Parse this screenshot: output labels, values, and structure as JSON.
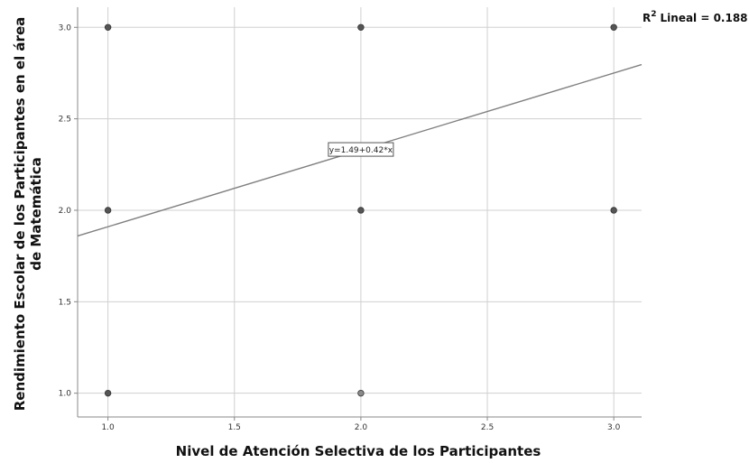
{
  "chart_data": {
    "type": "scatter",
    "title": "",
    "xlabel": "Nivel de Atención Selectiva de los Participantes",
    "ylabel_lines": [
      "Rendimiento Escolar de los Participantes en el área",
      "de Matemática"
    ],
    "xlim": [
      0.88,
      3.11
    ],
    "ylim": [
      0.87,
      3.11
    ],
    "xticks": [
      "1.0",
      "1.5",
      "2.0",
      "2.5",
      "3.0"
    ],
    "yticks": [
      "1.0",
      "1.5",
      "2.0",
      "2.5",
      "3.0"
    ],
    "grid": true,
    "points": [
      {
        "x": 1.0,
        "y": 3.0,
        "tone": "dark"
      },
      {
        "x": 1.0,
        "y": 2.0,
        "tone": "dark"
      },
      {
        "x": 1.0,
        "y": 1.0,
        "tone": "dark"
      },
      {
        "x": 2.0,
        "y": 3.0,
        "tone": "dark"
      },
      {
        "x": 2.0,
        "y": 2.0,
        "tone": "dark"
      },
      {
        "x": 2.0,
        "y": 1.0,
        "tone": "light"
      },
      {
        "x": 3.0,
        "y": 3.0,
        "tone": "dark"
      },
      {
        "x": 3.0,
        "y": 2.0,
        "tone": "dark"
      }
    ],
    "fit_line": {
      "intercept": 1.49,
      "slope": 0.42,
      "equation_label": "y=1.49+0.42*x",
      "label_at_x": 2.0
    },
    "r2_prefix": "R",
    "r2_superscript": "2",
    "r2_text": "Lineal = 0.188",
    "colors": {
      "grid": "#d0d0d0",
      "axis": "#888888",
      "point_dark": "#555555",
      "point_light": "#8a8a8a",
      "point_stroke": "#333333",
      "fit_line": "#808080"
    }
  }
}
